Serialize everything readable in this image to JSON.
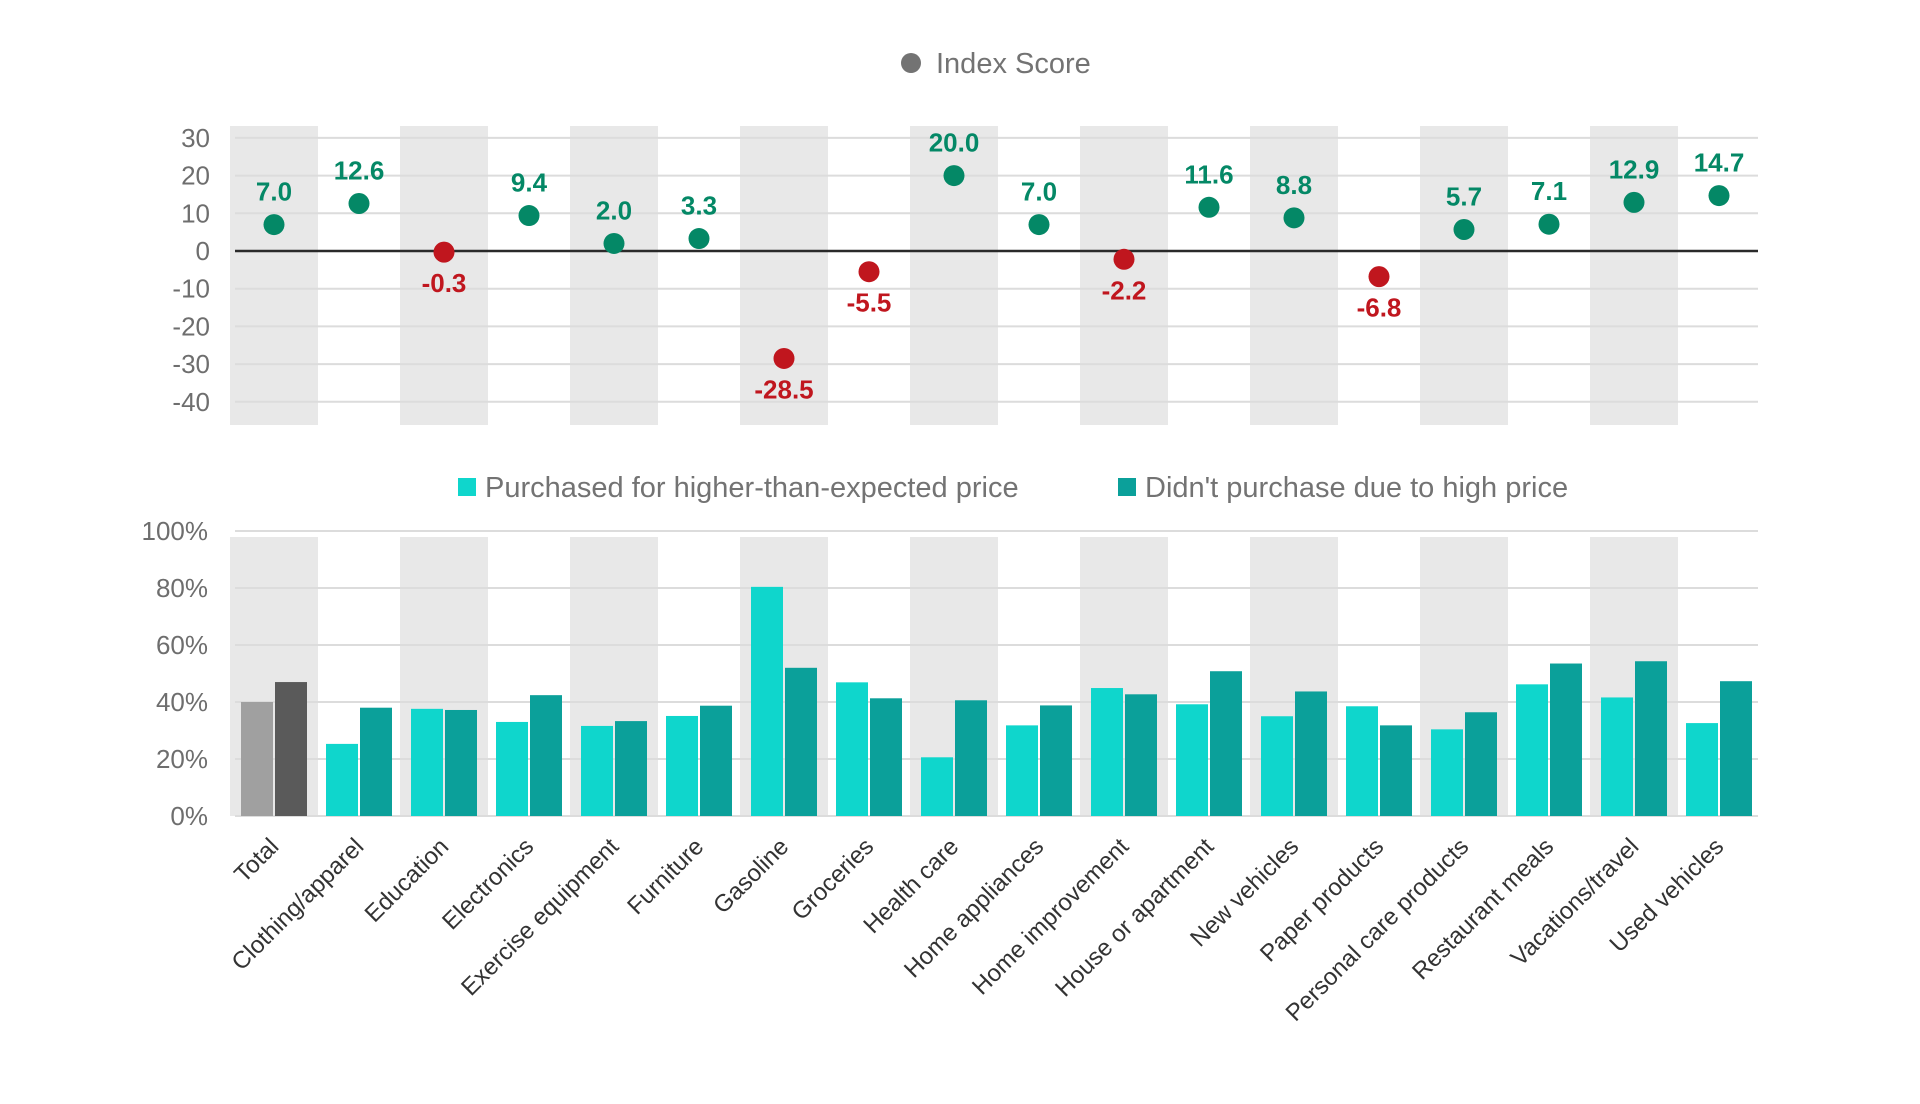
{
  "colors": {
    "positive": "#048866",
    "negative": "#c0161e",
    "purchased": "#0fd6cc",
    "not_purchased": "#0ba09a",
    "total_purchased": "#a0a0a0",
    "total_not_purchased": "#5a5a5a",
    "band": "#e8e8e8",
    "grid": "#dcdcdc",
    "zero_line": "#2a2a2a",
    "legend_marker": "#737373"
  },
  "chart_data": [
    {
      "type": "scatter",
      "title": "",
      "legend": {
        "entries": [
          "Index Score"
        ],
        "placement": "top-center"
      },
      "categories": [
        "Total",
        "Clothing/apparel",
        "Education",
        "Electronics",
        "Exercise equipment",
        "Furniture",
        "Gasoline",
        "Groceries",
        "Health care",
        "Home appliances",
        "Home improvement",
        "House or apartment",
        "New vehicles",
        "Paper products",
        "Personal care products",
        "Restaurant meals",
        "Vacations/travel",
        "Used vehicles"
      ],
      "series": [
        {
          "name": "Index Score",
          "values": [
            7.0,
            12.6,
            -0.3,
            9.4,
            2.0,
            3.3,
            -28.5,
            -5.5,
            20.0,
            7.0,
            -2.2,
            11.6,
            8.8,
            -6.8,
            5.7,
            7.1,
            12.9,
            14.7
          ],
          "labels": [
            "7.0",
            "12.6",
            "-0.3",
            "9.4",
            "2.0",
            "3.3",
            "-28.5",
            "-5.5",
            "20.0",
            "7.0",
            "-2.2",
            "11.6",
            "8.8",
            "-6.8",
            "5.7",
            "7.1",
            "12.9",
            "14.7"
          ]
        }
      ],
      "xlabel": "",
      "ylabel": "",
      "ylim": [
        -40,
        30
      ],
      "yticks": [
        30,
        20,
        10,
        0,
        -10,
        -20,
        -30,
        -40
      ],
      "ytick_labels": [
        "30",
        "20",
        "10",
        "0",
        "-10",
        "-20",
        "-30",
        "-40"
      ],
      "grid": true,
      "alternating_bands": true
    },
    {
      "type": "bar",
      "title": "",
      "legend": {
        "entries": [
          "Purchased for higher-than-expected price",
          "Didn't purchase due to high price"
        ],
        "placement": "top-center"
      },
      "categories": [
        "Total",
        "Clothing/apparel",
        "Education",
        "Electronics",
        "Exercise equipment",
        "Furniture",
        "Gasoline",
        "Groceries",
        "Health care",
        "Home appliances",
        "Home improvement",
        "House or apartment",
        "New vehicles",
        "Paper products",
        "Personal care products",
        "Restaurant meals",
        "Vacations/travel",
        "Used vehicles"
      ],
      "series": [
        {
          "name": "Purchased for higher-than-expected price",
          "values": [
            40.0,
            25.3,
            37.6,
            33.0,
            31.6,
            35.1,
            80.4,
            46.9,
            20.6,
            31.8,
            44.9,
            39.2,
            35.0,
            38.5,
            30.4,
            46.2,
            41.6,
            32.6
          ]
        },
        {
          "name": "Didn't purchase due to high price",
          "values": [
            47.0,
            38.0,
            37.2,
            42.4,
            33.3,
            38.7,
            52.0,
            41.3,
            40.6,
            38.8,
            42.7,
            50.8,
            43.7,
            31.8,
            36.4,
            53.5,
            54.3,
            47.3
          ]
        }
      ],
      "xlabel": "",
      "ylabel": "",
      "ylim": [
        0,
        100
      ],
      "yticks": [
        100,
        80,
        60,
        40,
        20,
        0
      ],
      "ytick_labels": [
        "100%",
        "80%",
        "60%",
        "40%",
        "20%",
        "0%"
      ],
      "grid": true,
      "alternating_bands": true
    }
  ]
}
